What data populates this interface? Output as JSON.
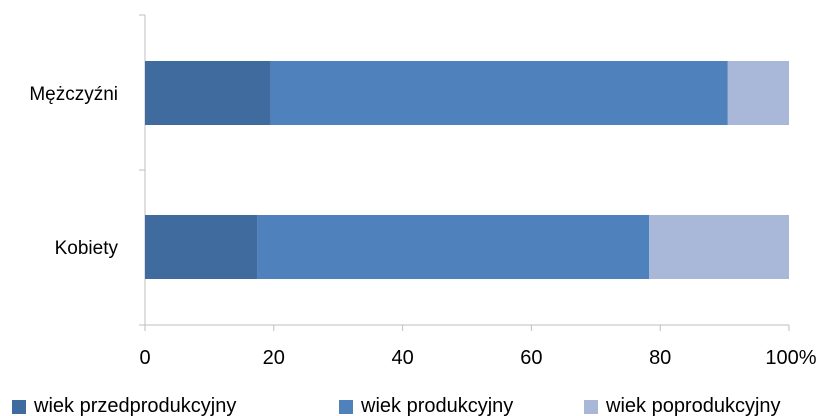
{
  "chart_data": {
    "type": "bar",
    "orientation": "horizontal",
    "stacked": "percent",
    "categories": [
      "Mężczyźni",
      "Kobiety"
    ],
    "series": [
      {
        "name": "wiek przedprodukcyjny",
        "values": [
          19.5,
          17.5
        ],
        "color": "#3f6b9e"
      },
      {
        "name": "wiek produkcyjny",
        "values": [
          71.0,
          60.8
        ],
        "color": "#4f81bd"
      },
      {
        "name": "wiek poprodukcyjny",
        "values": [
          9.5,
          21.7
        ],
        "color": "#a9b8d8"
      }
    ],
    "xlim": [
      0,
      100
    ],
    "xticks": [
      "0",
      "20",
      "40",
      "60",
      "80",
      "100%"
    ],
    "grid": false,
    "legend_position": "bottom"
  }
}
